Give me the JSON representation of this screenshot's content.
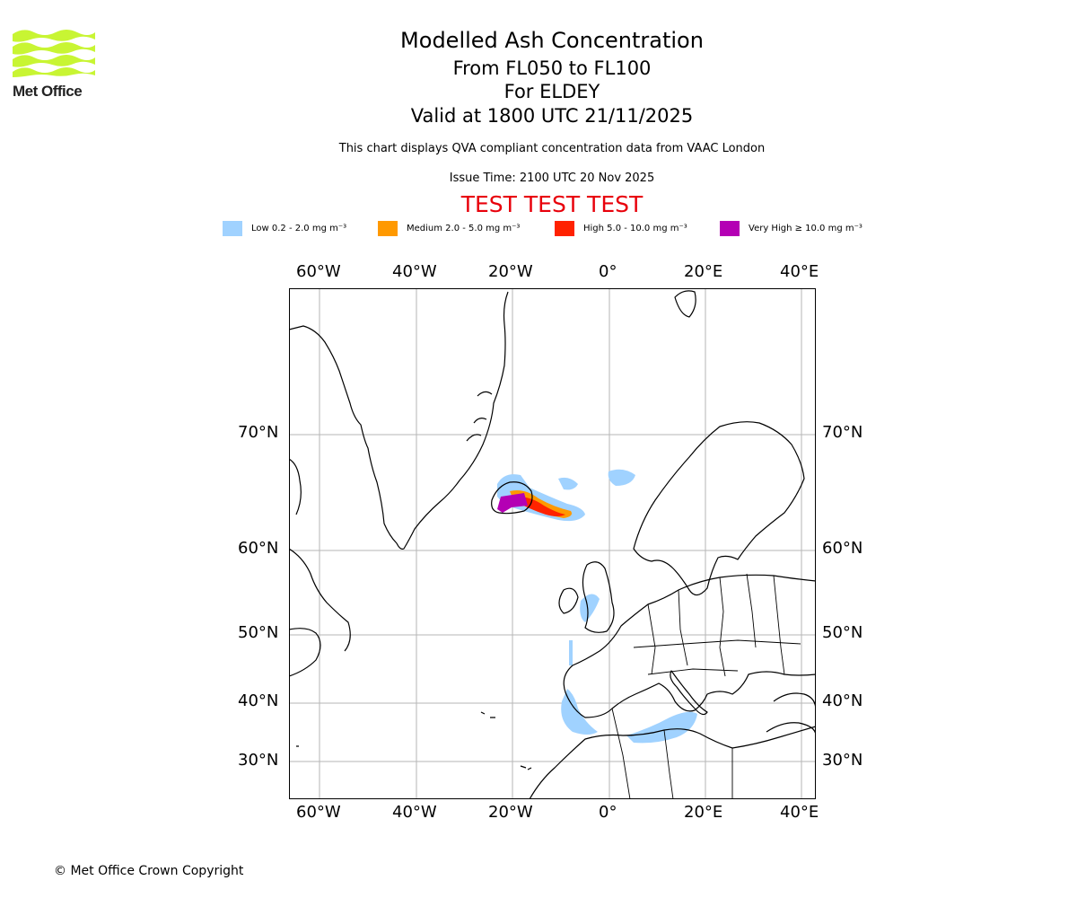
{
  "logo": {
    "text": "Met Office",
    "brand_color": "#c8f533"
  },
  "header": {
    "title": "Modelled Ash Concentration",
    "levels": "From FL050 to FL100",
    "for": "For ELDEY",
    "valid": "Valid at 1800 UTC 21/11/2025",
    "description": "This chart displays QVA compliant concentration data from VAAC London",
    "issue": "Issue Time: 2100 UTC 20 Nov 2025",
    "test_banner": "TEST TEST TEST"
  },
  "legend": [
    {
      "label": "Low 0.2 - 2.0 mg m⁻³",
      "color": "#a0d2ff"
    },
    {
      "label": "Medium 2.0 - 5.0 mg m⁻³",
      "color": "#ff9900"
    },
    {
      "label": "High 5.0 - 10.0 mg m⁻³",
      "color": "#ff2200"
    },
    {
      "label": "Very High ≥ 10.0 mg m⁻³",
      "color": "#b400b4"
    }
  ],
  "axes": {
    "lon_labels": [
      "60°W",
      "40°W",
      "20°W",
      "0°",
      "20°E",
      "40°E"
    ],
    "lat_labels": [
      "70°N",
      "60°N",
      "50°N",
      "40°N",
      "30°N"
    ]
  },
  "footer": {
    "copyright": "© Met Office Crown Copyright"
  }
}
